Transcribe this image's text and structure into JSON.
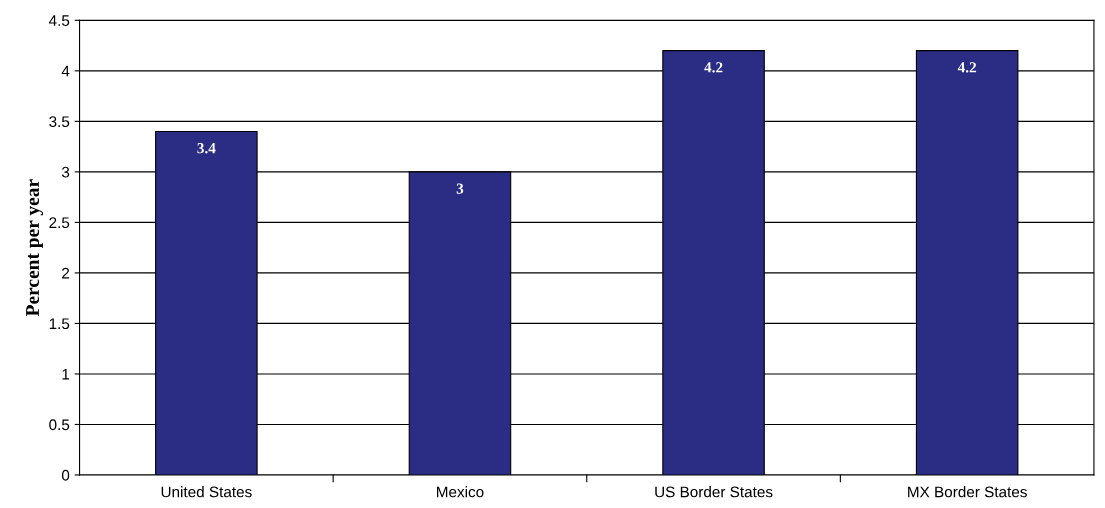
{
  "chart_data": {
    "type": "bar",
    "ylabel": "Percent per year",
    "categories": [
      "United States",
      "Mexico",
      "US Border States",
      "MX Border States"
    ],
    "values": [
      3.4,
      3,
      4.2,
      4.2
    ],
    "color": "#2b2d85",
    "ylim": [
      0,
      4.5
    ],
    "yticks": [
      0,
      0.5,
      1,
      1.5,
      2,
      2.5,
      3,
      3.5,
      4,
      4.5
    ],
    "grid": "y",
    "data_labels": true
  }
}
